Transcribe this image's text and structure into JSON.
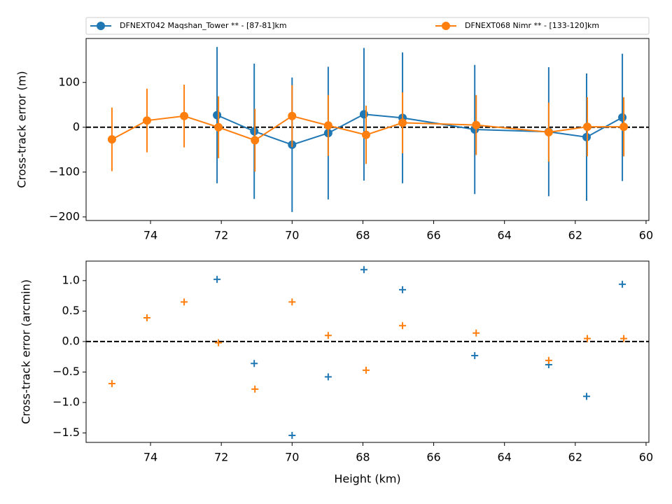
{
  "chart_data": [
    {
      "type": "errorbar",
      "ylabel": "Cross-track error (m)",
      "xlim": [
        75.82,
        59.92
      ],
      "xticks": [
        74,
        72,
        70,
        68,
        66,
        64,
        62,
        60
      ],
      "ylim": [
        -208,
        198
      ],
      "yticks": [
        {
          "value": -200,
          "label": "−200"
        },
        {
          "value": -100,
          "label": "−100"
        },
        0,
        100
      ],
      "hline": 0,
      "legend": "top",
      "series": [
        {
          "name": "DFNEXT042 Maqshan_Tower **  - [87-81]km",
          "color": "#1f77b4",
          "x": [
            72.12,
            71.07,
            70.0,
            68.98,
            67.97,
            66.88,
            64.84,
            62.75,
            61.68,
            60.67
          ],
          "values": [
            27,
            -9,
            -39,
            -13,
            29,
            21,
            -5,
            -10,
            -22,
            22
          ],
          "errors": [
            152,
            151,
            150,
            148,
            148,
            146,
            144,
            144,
            142,
            142
          ]
        },
        {
          "name": "DFNEXT068 Nimr **  - [133-120]km",
          "color": "#ff7f0e",
          "x": [
            75.09,
            74.1,
            73.05,
            72.08,
            71.05,
            70.0,
            68.98,
            67.91,
            66.88,
            64.8,
            62.75,
            61.66,
            60.63
          ],
          "values": [
            -27,
            15,
            25,
            0,
            -29,
            25,
            4,
            -17,
            10,
            5,
            -11,
            1,
            1
          ],
          "errors": [
            71,
            71,
            70,
            69,
            70,
            69,
            68,
            65,
            68,
            67,
            66,
            66,
            66
          ]
        }
      ]
    },
    {
      "type": "scatter",
      "ylabel": "Cross-track error (arcmin)",
      "xlabel": "Height (km)",
      "xlim": [
        75.82,
        59.92
      ],
      "xticks": [
        74,
        72,
        70,
        68,
        66,
        64,
        62,
        60
      ],
      "ylim": [
        -1.655,
        1.32
      ],
      "yticks": [
        {
          "value": -1.5,
          "label": "−1.5"
        },
        {
          "value": -1,
          "label": "−1.0"
        },
        {
          "value": -0.5,
          "label": "−0.5"
        },
        {
          "value": 0,
          "label": "0.0"
        },
        0.5,
        {
          "value": 1,
          "label": "1.0"
        }
      ],
      "hline": 0,
      "series": [
        {
          "color": "#1f77b4",
          "x": [
            72.12,
            71.07,
            70.0,
            68.98,
            67.97,
            66.88,
            64.84,
            62.75,
            61.68,
            60.67
          ],
          "values": [
            1.02,
            -0.36,
            -1.54,
            -0.58,
            1.18,
            0.85,
            -0.23,
            -0.38,
            -0.9,
            0.94
          ]
        },
        {
          "color": "#ff7f0e",
          "x": [
            75.09,
            74.1,
            73.05,
            72.08,
            71.05,
            70.0,
            68.98,
            67.91,
            66.88,
            64.8,
            62.75,
            61.66,
            60.63
          ],
          "values": [
            -0.69,
            0.39,
            0.65,
            -0.02,
            -0.78,
            0.65,
            0.1,
            -0.47,
            0.26,
            0.14,
            -0.31,
            0.05,
            0.05
          ]
        }
      ]
    }
  ]
}
